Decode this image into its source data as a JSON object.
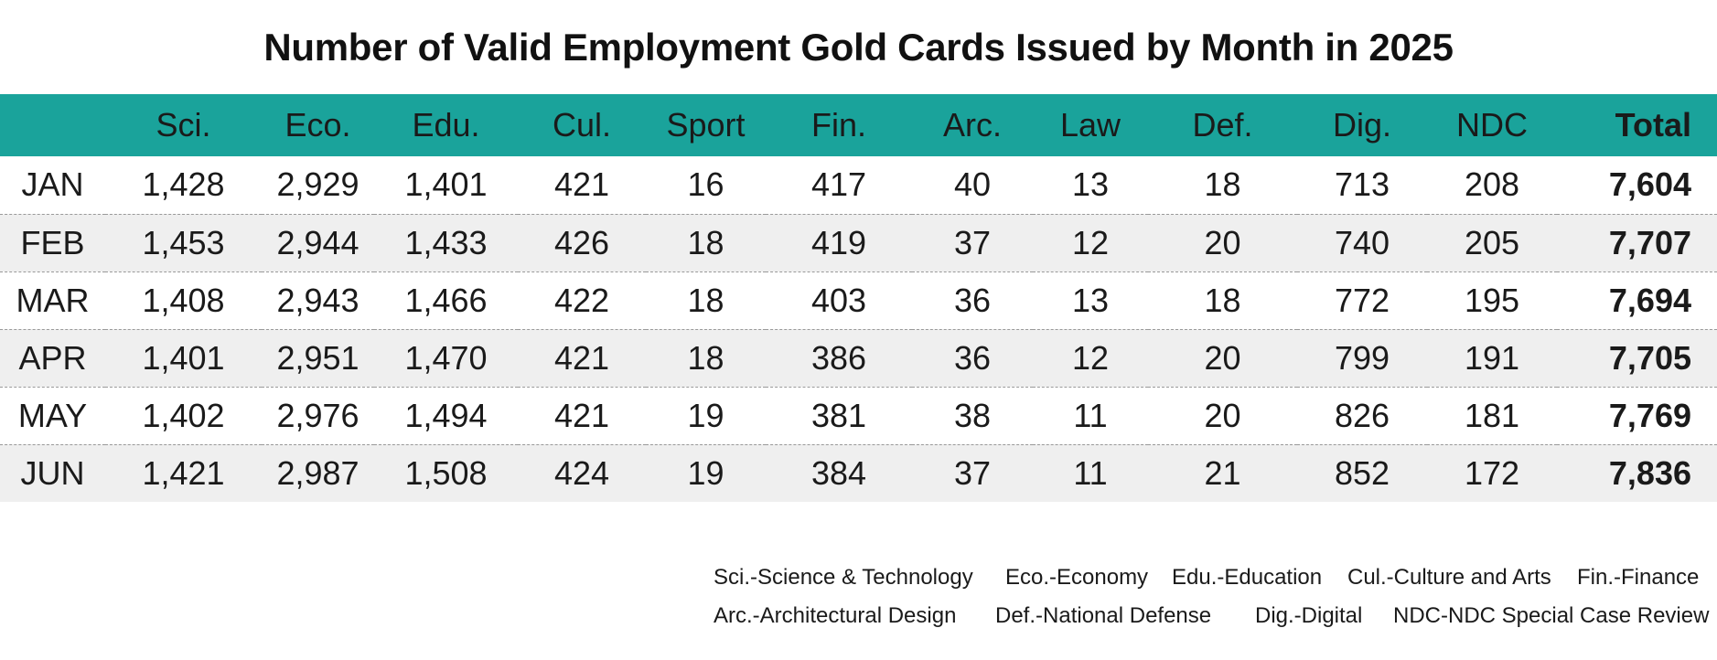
{
  "chart_data": {
    "type": "table",
    "title": "Number of Valid Employment Gold Cards Issued by Month in 2025",
    "columns": [
      "",
      "Sci.",
      "Eco.",
      "Edu.",
      "Cul.",
      "Sport",
      "Fin.",
      "Arc.",
      "Law",
      "Def.",
      "Dig.",
      "NDC",
      "Total"
    ],
    "rows": [
      {
        "month": "JAN",
        "values": [
          "1,428",
          "2,929",
          "1,401",
          "421",
          "16",
          "417",
          "40",
          "13",
          "18",
          "713",
          "208"
        ],
        "total": "7,604"
      },
      {
        "month": "FEB",
        "values": [
          "1,453",
          "2,944",
          "1,433",
          "426",
          "18",
          "419",
          "37",
          "12",
          "20",
          "740",
          "205"
        ],
        "total": "7,707"
      },
      {
        "month": "MAR",
        "values": [
          "1,408",
          "2,943",
          "1,466",
          "422",
          "18",
          "403",
          "36",
          "13",
          "18",
          "772",
          "195"
        ],
        "total": "7,694"
      },
      {
        "month": "APR",
        "values": [
          "1,401",
          "2,951",
          "1,470",
          "421",
          "18",
          "386",
          "36",
          "12",
          "20",
          "799",
          "191"
        ],
        "total": "7,705"
      },
      {
        "month": "MAY",
        "values": [
          "1,402",
          "2,976",
          "1,494",
          "421",
          "19",
          "381",
          "38",
          "11",
          "20",
          "826",
          "181"
        ],
        "total": "7,769"
      },
      {
        "month": "JUN",
        "values": [
          "1,421",
          "2,987",
          "1,508",
          "424",
          "19",
          "384",
          "37",
          "11",
          "21",
          "852",
          "172"
        ],
        "total": "7,836"
      }
    ],
    "legend": [
      [
        "Sci.-Science & Technology",
        "Eco.-Economy",
        "Edu.-Education",
        "Cul.-Culture and Arts",
        "Fin.-Finance"
      ],
      [
        "Arc.-Architectural Design",
        "Def.-National Defense",
        "Dig.-Digital",
        "NDC-NDC Special Case Review"
      ]
    ],
    "colors": {
      "header_bg": "#1aa39b",
      "alt_row_bg": "#efefef",
      "divider": "#9a9a9a"
    }
  }
}
